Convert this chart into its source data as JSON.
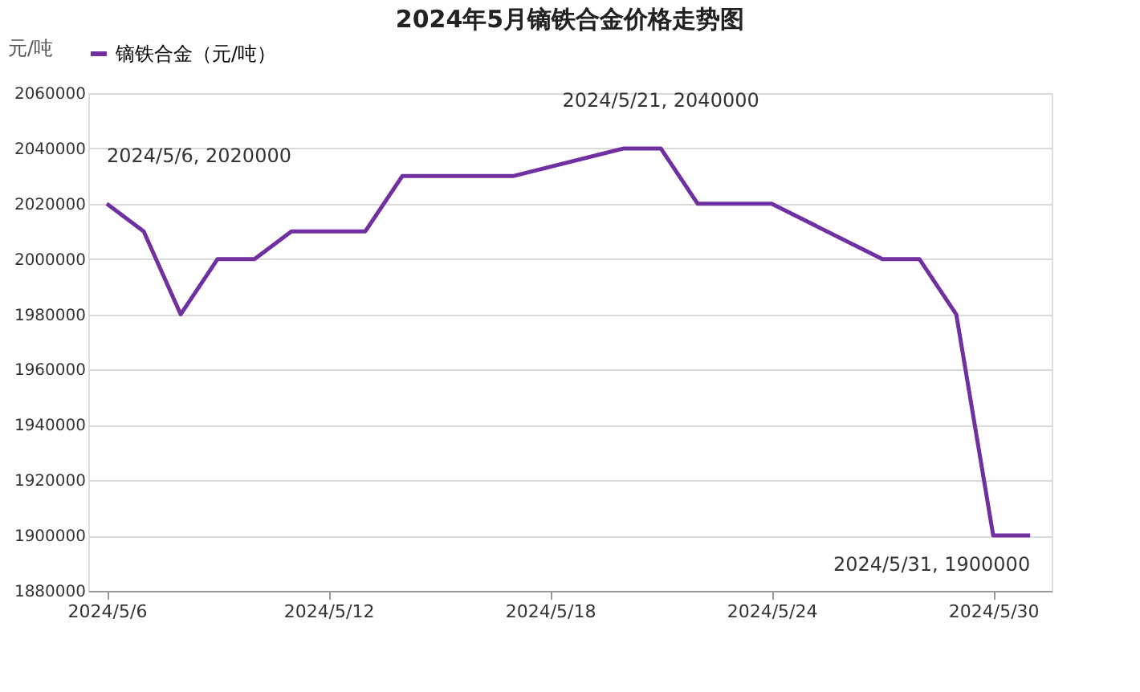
{
  "chart_data": {
    "type": "line",
    "title": "2024年5月镝铁合金价格走势图",
    "ylabel": "元/吨",
    "x": [
      "2024-05-06",
      "2024-05-07",
      "2024-05-08",
      "2024-05-09",
      "2024-05-10",
      "2024-05-11",
      "2024-05-13",
      "2024-05-14",
      "2024-05-15",
      "2024-05-16",
      "2024-05-17",
      "2024-05-20",
      "2024-05-21",
      "2024-05-22",
      "2024-05-23",
      "2024-05-24",
      "2024-05-27",
      "2024-05-28",
      "2024-05-29",
      "2024-05-30",
      "2024-05-31"
    ],
    "series": [
      {
        "name": "镝铁合金（元/吨）",
        "color": "#7030a0",
        "values": [
          2020000,
          2010000,
          1980000,
          2000000,
          2000000,
          2010000,
          2010000,
          2030000,
          2030000,
          2030000,
          2030000,
          2040000,
          2040000,
          2020000,
          2020000,
          2020000,
          2000000,
          2000000,
          1980000,
          1900000,
          1900000
        ]
      }
    ],
    "xlim": [
      "2024-05-05T12:00",
      "2024-05-31T14:00"
    ],
    "xticks": [
      {
        "value": "2024-05-06",
        "label": "2024/5/6"
      },
      {
        "value": "2024-05-12",
        "label": "2024/5/12"
      },
      {
        "value": "2024-05-18",
        "label": "2024/5/18"
      },
      {
        "value": "2024-05-24",
        "label": "2024/5/24"
      },
      {
        "value": "2024-05-30",
        "label": "2024/5/30"
      }
    ],
    "ylim": [
      1880000,
      2060000
    ],
    "yticks": [
      1880000,
      1900000,
      1920000,
      1940000,
      1960000,
      1980000,
      2000000,
      2020000,
      2040000,
      2060000
    ],
    "grid": "y",
    "legend": "top",
    "marker": "none",
    "line_style": "solid",
    "annotations": [
      {
        "text": "2024/5/6, 2020000",
        "x": "2024-05-06",
        "y": 2020000
      },
      {
        "text": "2024/5/21, 2040000",
        "x": "2024-05-21",
        "y": 2040000
      },
      {
        "text": "2024/5/31, 1900000",
        "x": "2024-05-31",
        "y": 1900000
      }
    ]
  }
}
